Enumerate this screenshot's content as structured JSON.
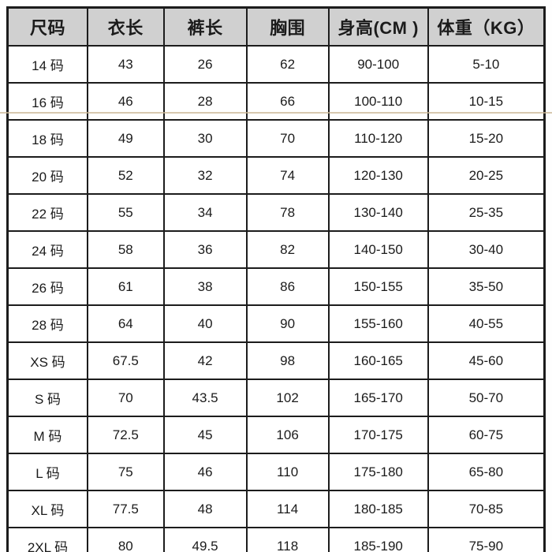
{
  "page_title": "童装尺码表",
  "colors": {
    "header_bg": "#d0d0d0",
    "border": "#1c1c1c",
    "text": "#1b1b1b",
    "seam_line": "#c9b694",
    "background": "#fefefe"
  },
  "chart_data": {
    "type": "table",
    "title": "",
    "columns": [
      "尺码",
      "衣长",
      "裤长",
      "胸围",
      "身高(CM )",
      "体重（KG）"
    ],
    "column_widths_pct": [
      14.9,
      14.2,
      15.4,
      15.3,
      18.5,
      21.7
    ],
    "rows": [
      [
        "14 码",
        "43",
        "26",
        "62",
        "90-100",
        "5-10"
      ],
      [
        "16 码",
        "46",
        "28",
        "66",
        "100-110",
        "10-15"
      ],
      [
        "18 码",
        "49",
        "30",
        "70",
        "110-120",
        "15-20"
      ],
      [
        "20 码",
        "52",
        "32",
        "74",
        "120-130",
        "20-25"
      ],
      [
        "22 码",
        "55",
        "34",
        "78",
        "130-140",
        "25-35"
      ],
      [
        "24 码",
        "58",
        "36",
        "82",
        "140-150",
        "30-40"
      ],
      [
        "26 码",
        "61",
        "38",
        "86",
        "150-155",
        "35-50"
      ],
      [
        "28 码",
        "64",
        "40",
        "90",
        "155-160",
        "40-55"
      ],
      [
        "XS 码",
        "67.5",
        "42",
        "98",
        "160-165",
        "45-60"
      ],
      [
        "S 码",
        "70",
        "43.5",
        "102",
        "165-170",
        "50-70"
      ],
      [
        "M 码",
        "72.5",
        "45",
        "106",
        "170-175",
        "60-75"
      ],
      [
        "L 码",
        "75",
        "46",
        "110",
        "175-180",
        "65-80"
      ],
      [
        "XL 码",
        "77.5",
        "48",
        "114",
        "180-185",
        "70-85"
      ],
      [
        "2XL 码",
        "80",
        "49.5",
        "118",
        "185-190",
        "75-90"
      ]
    ],
    "layout": {
      "header_row": true,
      "grid": true,
      "all_cells_centered": true
    }
  }
}
